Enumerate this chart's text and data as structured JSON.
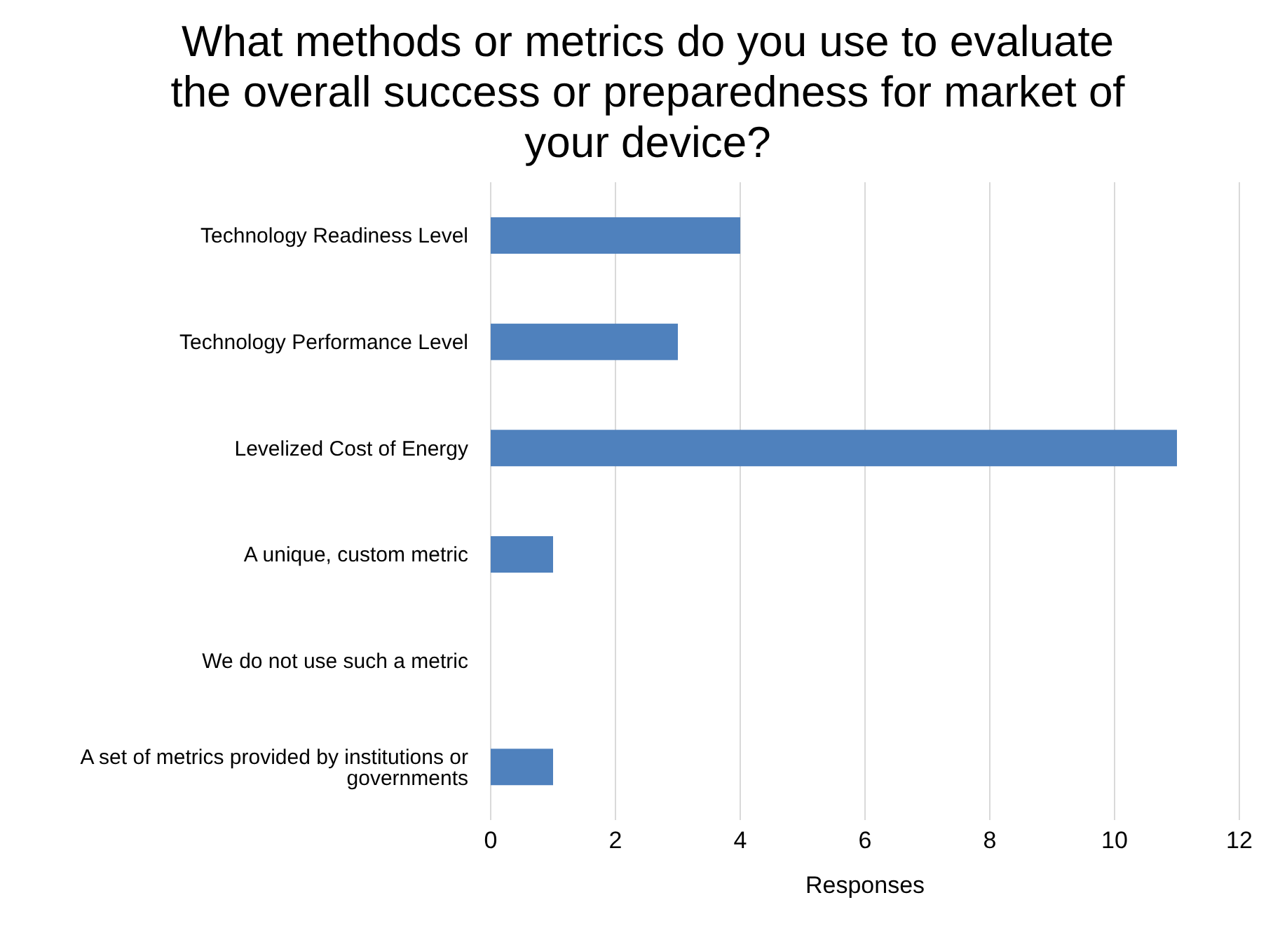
{
  "chart_data": {
    "type": "bar",
    "orientation": "horizontal",
    "title": "What methods or metrics do you use to evaluate the overall success or preparedness for market of your device?",
    "xlabel": "Responses",
    "categories": [
      "Technology Readiness Level",
      "Technology Performance Level",
      "Levelized Cost of Energy",
      "A unique, custom metric",
      "We do not use such a metric",
      "A set of metrics provided by institutions or governments"
    ],
    "values": [
      4,
      3,
      11,
      1,
      0,
      1
    ],
    "color": "#4f81bd",
    "xlim": [
      0,
      12
    ],
    "xticks": [
      0,
      2,
      4,
      6,
      8,
      10,
      12
    ],
    "grid": "x"
  }
}
